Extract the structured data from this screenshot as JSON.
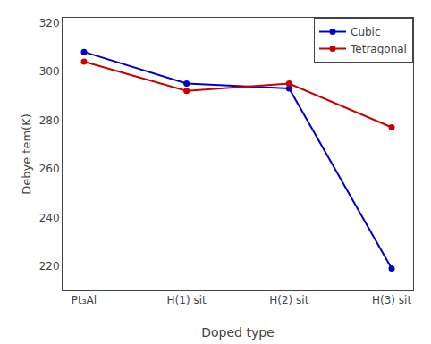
{
  "chart_data": {
    "type": "line",
    "xlabel": "Doped type",
    "ylabel": "Debye tem(K)",
    "categories": [
      "Pt₃Al",
      "H(1) sit",
      "H(2) sit",
      "H(3) sit"
    ],
    "series": [
      {
        "name": "Cubic",
        "color": "#0000cc",
        "values": [
          308,
          295,
          293,
          219
        ]
      },
      {
        "name": "Tetragonal",
        "color": "#cc0000",
        "values": [
          304,
          292,
          295,
          277
        ]
      }
    ],
    "ylim": [
      210,
      322
    ],
    "yticks": [
      220,
      240,
      260,
      280,
      300,
      320
    ],
    "marker": "circle",
    "grid": false,
    "legend": "upper right"
  }
}
